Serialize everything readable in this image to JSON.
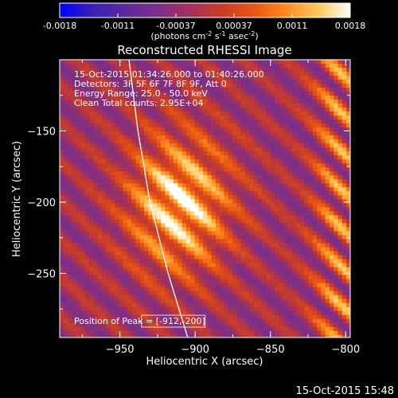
{
  "colorbar": {
    "ticks": [
      "-0.0018",
      "-0.0011",
      "-0.00037",
      "0.00037",
      "0.0011",
      "0.0018"
    ],
    "unit_text": "(photons cm",
    "unit_exp1": "-2",
    "unit_mid1": " s",
    "unit_exp2": "-1",
    "unit_mid2": " asec",
    "unit_exp3": "-2",
    "unit_end": ")",
    "colors": [
      "#0000ff",
      "#3a1fb4",
      "#5a2a9e",
      "#7a2f8a",
      "#a0305f",
      "#c83c2a",
      "#e85512",
      "#ff8a1e",
      "#ffc85a",
      "#ffffff"
    ]
  },
  "chart_data": {
    "type": "heatmap",
    "title": "Reconstructed RHESSI Image",
    "xlabel": "Heliocentric X (arcsec)",
    "ylabel": "Heliocentric Y (arcsec)",
    "xlim": [
      -990,
      -797
    ],
    "ylim": [
      -295,
      -100
    ],
    "xticks": [
      -950,
      -900,
      -850,
      -800
    ],
    "yticks": [
      -150,
      -200,
      -250
    ],
    "xtick_labels": [
      "−950",
      "−900",
      "−850",
      "−800"
    ],
    "ytick_labels": [
      "−150",
      "−200",
      "−250"
    ],
    "value_range": [
      -0.0018,
      0.0018
    ],
    "peak": [
      -912,
      -200
    ],
    "limb_curve": [
      [
        -944,
        -100
      ],
      [
        -938,
        -150
      ],
      [
        -930,
        -200
      ],
      [
        -918,
        -250
      ],
      [
        -905,
        -295
      ]
    ],
    "annotations": [
      "15-Oct-2015 01:34:26.000 to 01:40:26.000",
      "Detectors: 3F 5F 6F 7F 8F 9F, Att 0",
      "Energy Range: 25.0 - 50.0 keV",
      "Clean    Total counts: 2.95E+04"
    ],
    "peak_label": "Position of Peak = [-912,-200]"
  },
  "footer": {
    "timestamp": "15-Oct-2015 15:48"
  }
}
